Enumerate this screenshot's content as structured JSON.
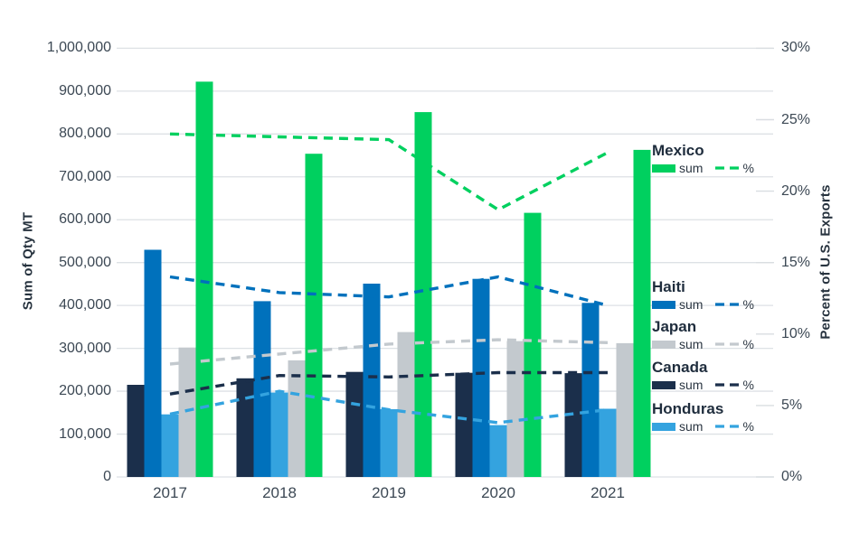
{
  "chart_data": {
    "type": "combo-bar-line",
    "title": "",
    "categories": [
      "2017",
      "2018",
      "2019",
      "2020",
      "2021"
    ],
    "ylabel_left": "Sum of Qty MT",
    "ylabel_right": "Percent of U.S. Exports",
    "y_left": {
      "min": 0,
      "max": 1000000,
      "step": 100000,
      "tick_labels": [
        "0",
        "100,000",
        "200,000",
        "300,000",
        "400,000",
        "500,000",
        "600,000",
        "700,000",
        "800,000",
        "900,000",
        "1,000,000"
      ]
    },
    "y_right": {
      "min": 0,
      "max": 30,
      "step": 5,
      "tick_labels": [
        "0%",
        "5%",
        "10%",
        "15%",
        "20%",
        "25%",
        "30%"
      ]
    },
    "grid": true,
    "legend_position": "right-overlay",
    "legend": {
      "sum_label": "sum",
      "pct_label": "%"
    },
    "bar_order": [
      "Canada",
      "Haiti",
      "Honduras",
      "Japan",
      "Mexico"
    ],
    "series": [
      {
        "name": "Mexico",
        "color": "#00D05F",
        "sum": [
          922000,
          754000,
          851000,
          616000,
          763000
        ],
        "pct": [
          24.0,
          23.8,
          23.6,
          18.7,
          22.7
        ]
      },
      {
        "name": "Haiti",
        "color": "#0071BC",
        "sum": [
          530000,
          410000,
          451000,
          462000,
          406000
        ],
        "pct": [
          14.0,
          12.9,
          12.6,
          14.0,
          12.0
        ]
      },
      {
        "name": "Japan",
        "color": "#C3C9CE",
        "sum": [
          302000,
          272000,
          338000,
          317000,
          312000
        ],
        "pct": [
          7.9,
          8.6,
          9.3,
          9.6,
          9.4
        ]
      },
      {
        "name": "Canada",
        "color": "#1B2F4B",
        "sum": [
          215000,
          230000,
          245000,
          243000,
          242000
        ],
        "pct": [
          5.8,
          7.1,
          7.0,
          7.3,
          7.3
        ]
      },
      {
        "name": "Honduras",
        "color": "#34A3DF",
        "sum": [
          146000,
          197000,
          158000,
          121000,
          159000
        ],
        "pct": [
          4.4,
          6.0,
          4.7,
          3.8,
          4.7
        ]
      }
    ],
    "colors": {
      "grid": "#DDE1E5",
      "right_tick": "#D9DDE1",
      "text": "#3C4854",
      "axis_title": "#27333F"
    }
  }
}
